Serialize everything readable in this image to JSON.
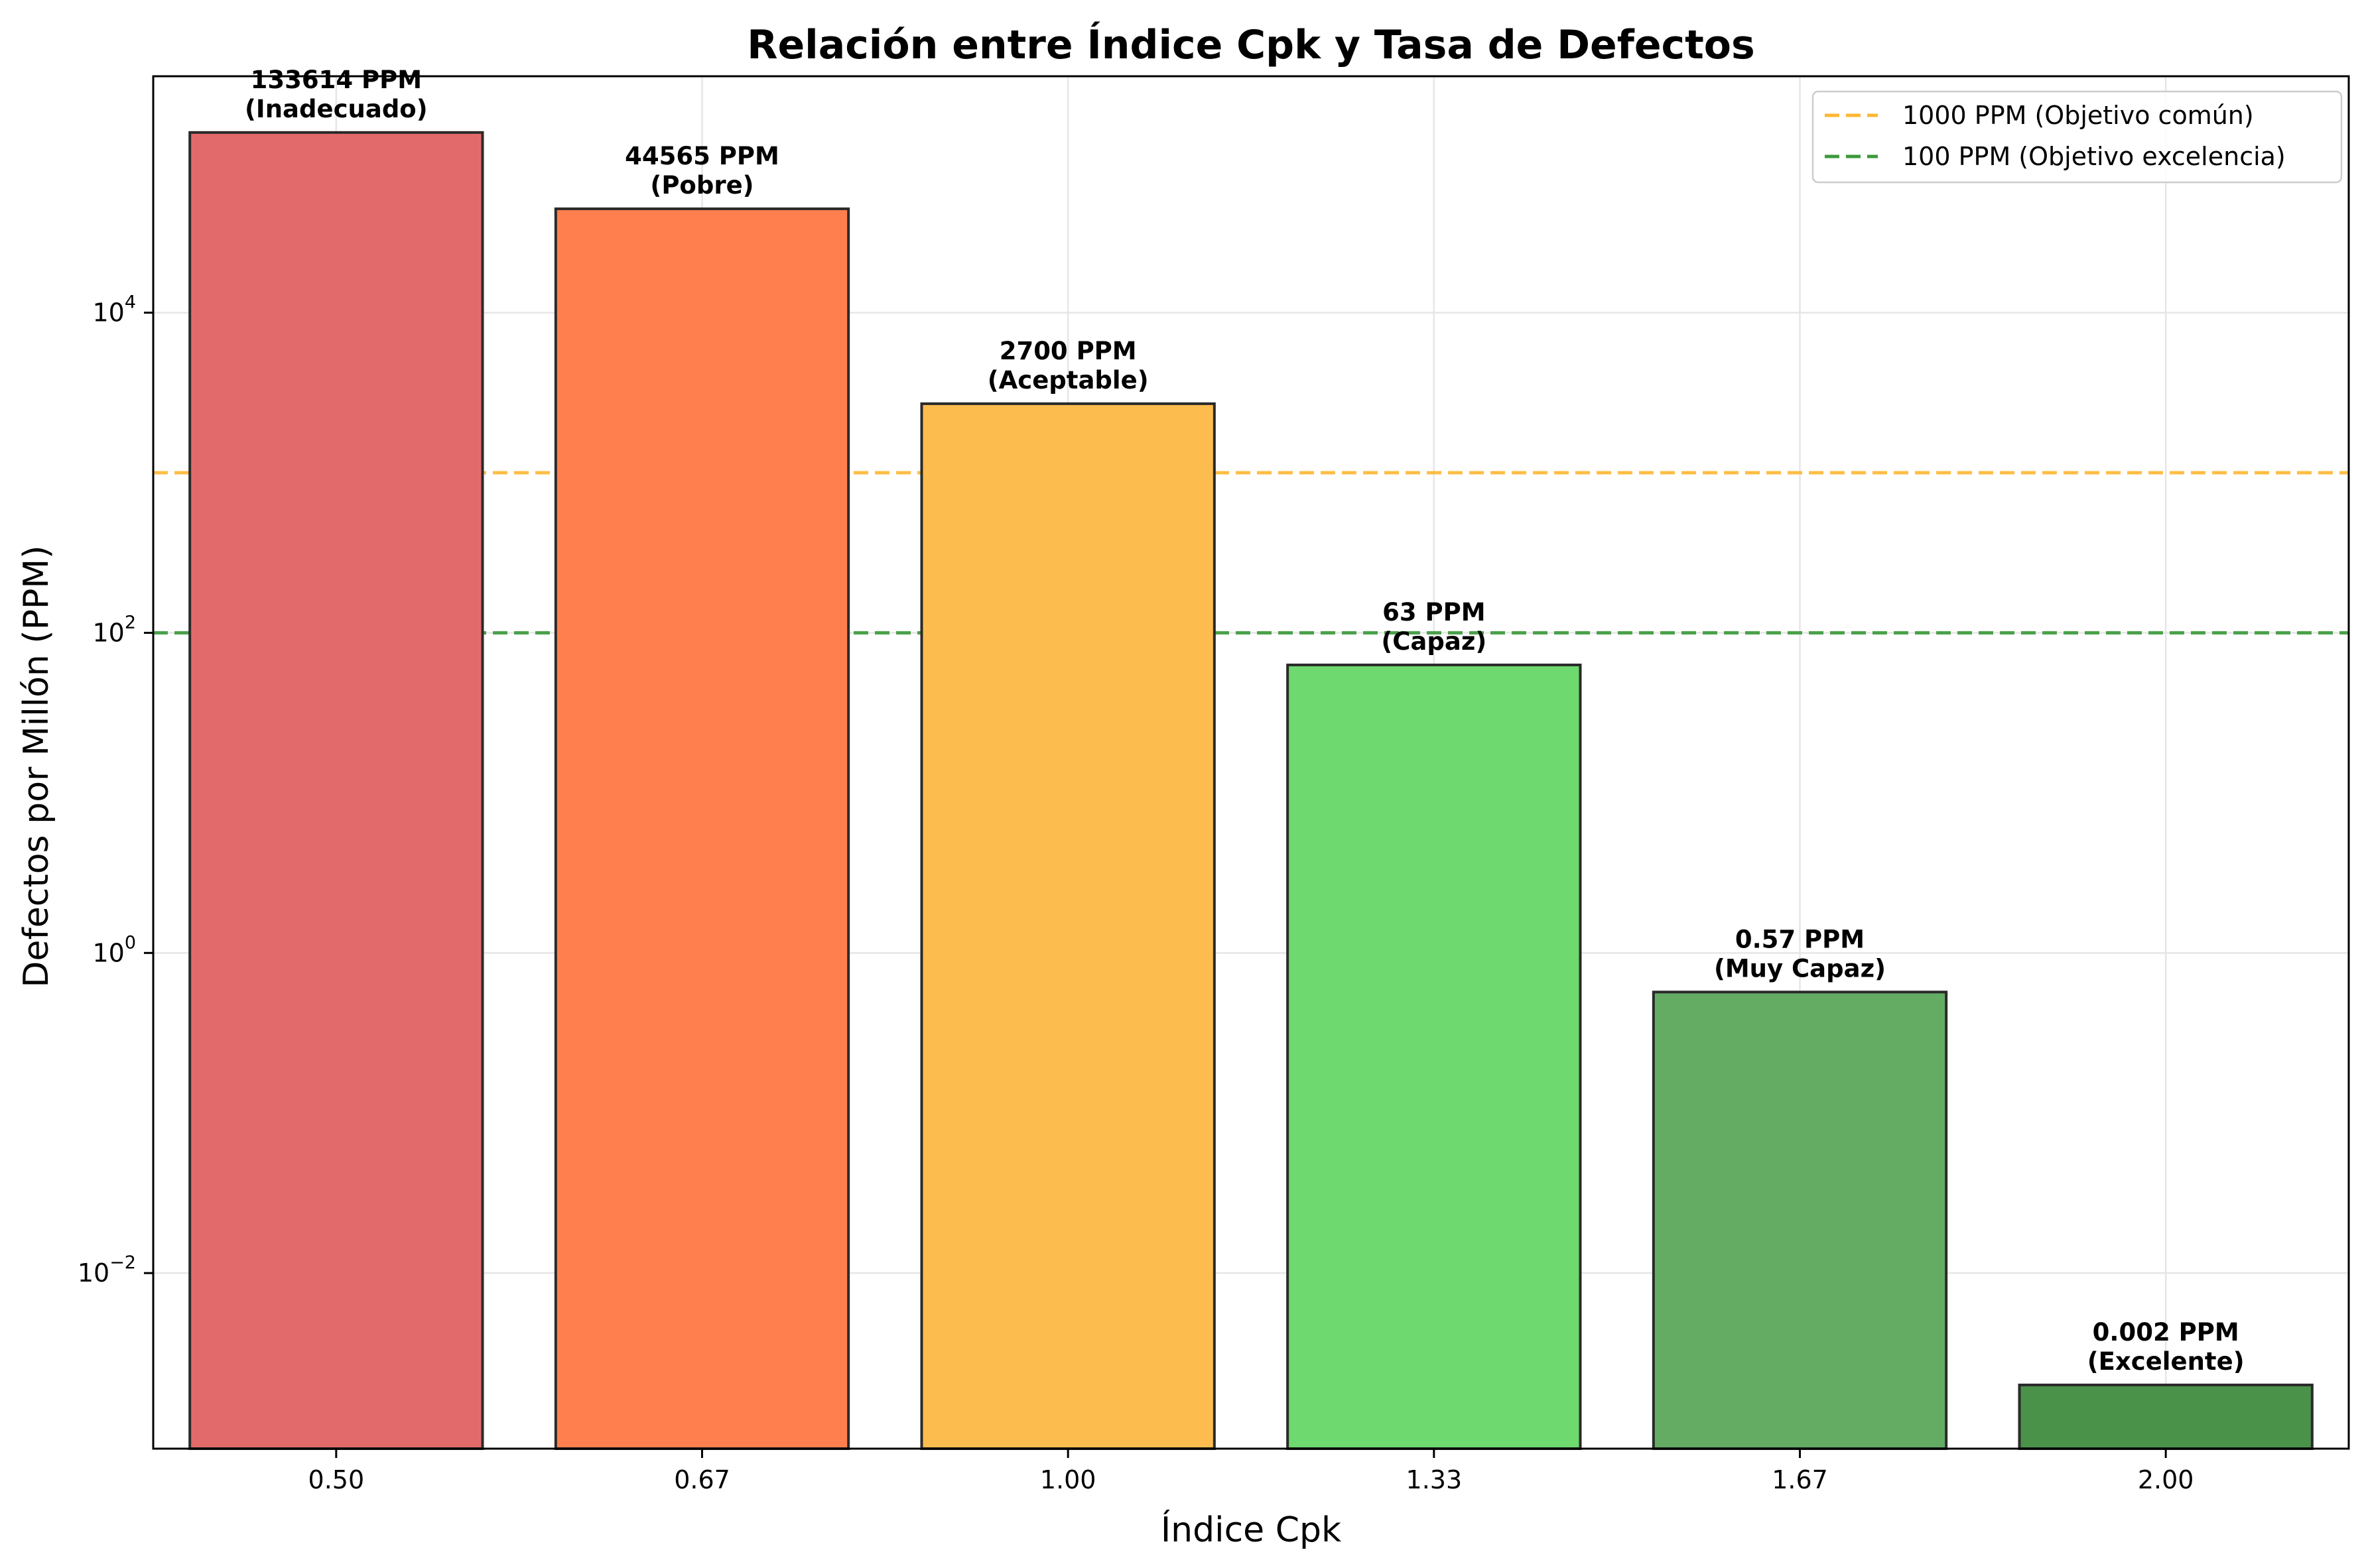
{
  "chart_data": {
    "type": "bar",
    "title": "Relación entre Índice Cpk y Tasa de Defectos",
    "xlabel": "Índice Cpk",
    "ylabel": "Defectos por Millón (PPM)",
    "yscale": "log",
    "ylim": [
      0.0008,
      300000
    ],
    "grid": true,
    "legend_position": "top-right",
    "categories": [
      "0.50",
      "0.67",
      "1.00",
      "1.33",
      "1.67",
      "2.00"
    ],
    "values": [
      133614,
      44565,
      2700,
      63,
      0.57,
      0.002
    ],
    "bar_labels": [
      {
        "value": "133614 PPM",
        "class": "(Inadecuado)"
      },
      {
        "value": "44565 PPM",
        "class": "(Pobre)"
      },
      {
        "value": "2700 PPM",
        "class": "(Aceptable)"
      },
      {
        "value": "63 PPM",
        "class": "(Capaz)"
      },
      {
        "value": "0.57 PPM",
        "class": "(Muy Capaz)"
      },
      {
        "value": "0.002 PPM",
        "class": "(Excelente)"
      }
    ],
    "bar_colors": [
      "#e36a6b",
      "#ff7f4e",
      "#fdbd4e",
      "#6dd96e",
      "#64ab64",
      "#4a9149"
    ],
    "y_ticks": [
      {
        "value": 0.01,
        "base": "10",
        "exp": "−2"
      },
      {
        "value": 1,
        "base": "10",
        "exp": "0"
      },
      {
        "value": 100,
        "base": "10",
        "exp": "2"
      },
      {
        "value": 10000,
        "base": "10",
        "exp": "4"
      }
    ],
    "reference_lines": [
      {
        "value": 1000,
        "label": "1000 PPM (Objetivo común)",
        "color": "#ffb733"
      },
      {
        "value": 100,
        "label": "100 PPM (Objetivo excelencia)",
        "color": "#3a9a3a"
      }
    ]
  }
}
